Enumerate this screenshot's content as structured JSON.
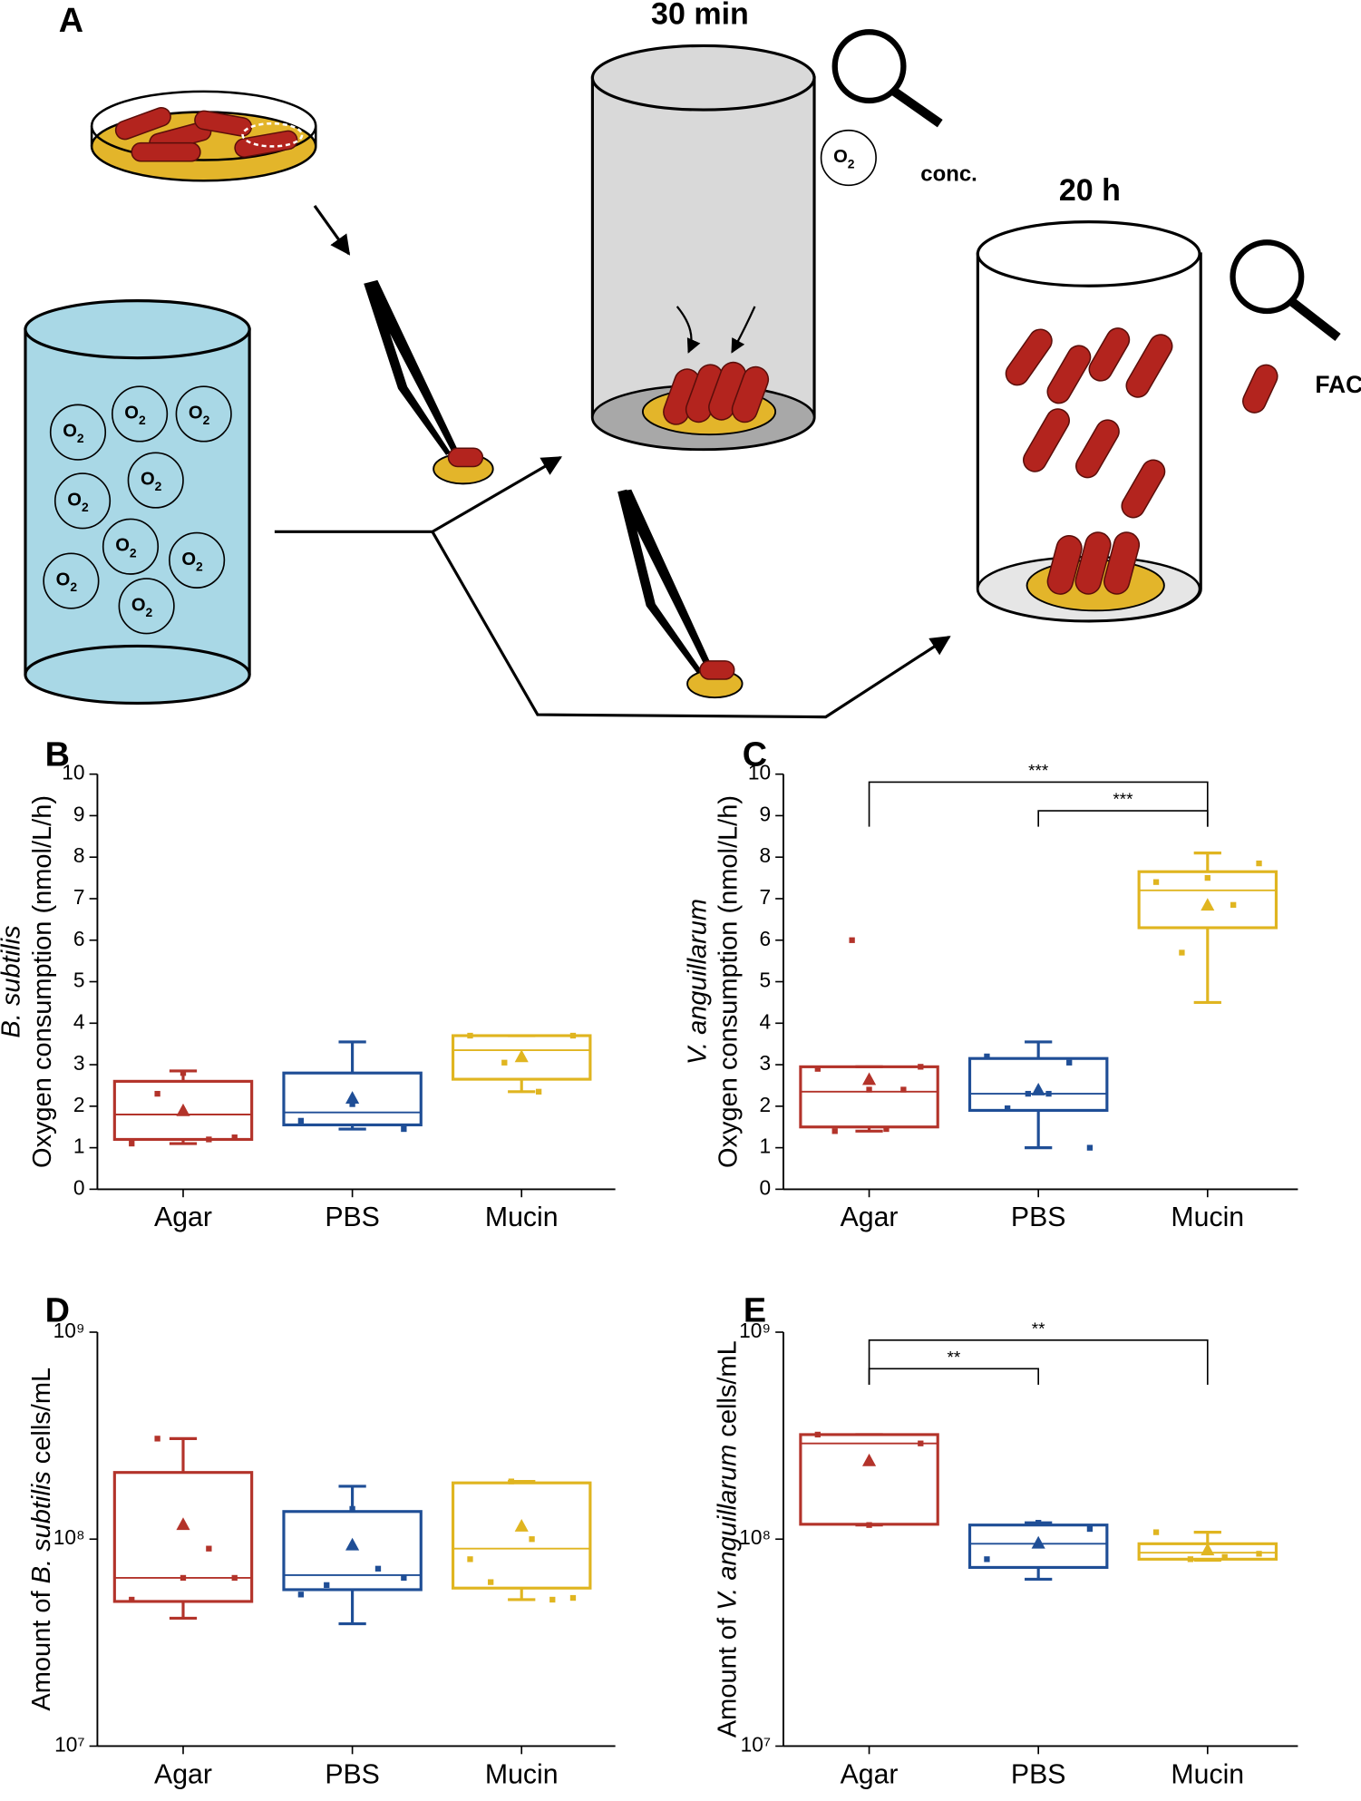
{
  "panel_a": {
    "letter": "A",
    "time_1": "30 min",
    "time_2": "20 h",
    "conc": "conc.",
    "facs": "FACS",
    "o2_symbol": "O",
    "o2_subscript": "2"
  },
  "chart_data": [
    {
      "type": "box",
      "panel": "B",
      "ylabel": [
        "B. subtilis",
        "Oxygen consumption (nmol/L/h)"
      ],
      "categories": [
        "Agar",
        "PBS",
        "Mucin"
      ],
      "ylim": [
        0,
        10
      ],
      "yticks": [
        0,
        1,
        2,
        3,
        4,
        5,
        6,
        7,
        8,
        9,
        10
      ],
      "boxes": [
        {
          "color": "#b3332a",
          "min": 1.1,
          "q1": 1.2,
          "median": 1.8,
          "q3": 2.6,
          "max": 2.85,
          "mean": 1.9,
          "points": [
            1.1,
            2.3,
            2.8,
            1.2,
            1.25
          ]
        },
        {
          "color": "#1f4e96",
          "min": 1.45,
          "q1": 1.55,
          "median": 1.85,
          "q3": 2.8,
          "max": 3.55,
          "mean": 2.2,
          "points": [
            1.65,
            2.05,
            1.45
          ]
        },
        {
          "color": "#e0b520",
          "min": 2.35,
          "q1": 2.65,
          "median": 3.35,
          "q3": 3.7,
          "max": 3.7,
          "mean": 3.2,
          "points": [
            3.7,
            3.05,
            2.35,
            3.7
          ]
        }
      ],
      "significance": []
    },
    {
      "type": "box",
      "panel": "C",
      "ylabel": [
        "V. anguillarum",
        "Oxygen consumption (nmol/L/h)"
      ],
      "categories": [
        "Agar",
        "PBS",
        "Mucin"
      ],
      "ylim": [
        0,
        10
      ],
      "yticks": [
        0,
        1,
        2,
        3,
        4,
        5,
        6,
        7,
        8,
        9,
        10
      ],
      "boxes": [
        {
          "color": "#b3332a",
          "min": 1.4,
          "q1": 1.5,
          "median": 2.35,
          "q3": 2.95,
          "max": 2.95,
          "mean": 2.65,
          "points": [
            2.9,
            1.4,
            6.0,
            2.4,
            1.45,
            2.4,
            2.95
          ]
        },
        {
          "color": "#1f4e96",
          "min": 1.0,
          "q1": 1.9,
          "median": 2.3,
          "q3": 3.15,
          "max": 3.55,
          "mean": 2.4,
          "points": [
            3.2,
            1.95,
            2.3,
            2.3,
            3.05,
            1.0
          ]
        },
        {
          "color": "#e0b520",
          "min": 4.5,
          "q1": 6.3,
          "median": 7.2,
          "q3": 7.65,
          "max": 8.1,
          "mean": 6.85,
          "points": [
            7.4,
            5.7,
            7.5,
            6.85,
            7.85
          ]
        }
      ],
      "significance": [
        {
          "between": [
            0,
            2
          ],
          "label": "***"
        },
        {
          "between": [
            1,
            2
          ],
          "label": "***"
        }
      ]
    },
    {
      "type": "box",
      "panel": "D",
      "ylabel": [
        "Amount of ",
        "B. subtilis",
        " cells/mL"
      ],
      "log_scale": true,
      "categories": [
        "Agar",
        "PBS",
        "Mucin"
      ],
      "ylim": [
        10000000,
        1000000000
      ],
      "yticks": [
        {
          "value": 10000000,
          "label": "10⁷"
        },
        {
          "value": 100000000,
          "label": "10⁸"
        },
        {
          "value": 1000000000,
          "label": "10⁹"
        }
      ],
      "boxes": [
        {
          "color": "#b3332a",
          "min": 41500000,
          "q1": 50000000,
          "median": 65000000,
          "q3": 210000000,
          "max": 306000000,
          "mean": 118000000,
          "points": [
            51000000,
            306000000,
            65000000,
            90000000,
            65000000
          ]
        },
        {
          "color": "#1f4e96",
          "min": 39000000,
          "q1": 57000000,
          "median": 67000000,
          "q3": 136000000,
          "max": 180000000,
          "mean": 94000000,
          "points": [
            54000000,
            60000000,
            140000000,
            72000000,
            65000000
          ]
        },
        {
          "color": "#e0b520",
          "min": 51000000,
          "q1": 58000000,
          "median": 90000000,
          "q3": 187000000,
          "max": 190000000,
          "mean": 116000000,
          "points": [
            80000000,
            62000000,
            190000000,
            100000000,
            51000000,
            52000000
          ]
        }
      ],
      "significance": []
    },
    {
      "type": "box",
      "panel": "E",
      "ylabel": [
        "Amount of ",
        "V. anguillarum",
        " cells/mL"
      ],
      "log_scale": true,
      "categories": [
        "Agar",
        "PBS",
        "Mucin"
      ],
      "ylim": [
        10000000,
        1000000000
      ],
      "yticks": [
        {
          "value": 10000000,
          "label": "10⁷"
        },
        {
          "value": 100000000,
          "label": "10⁸"
        },
        {
          "value": 1000000000,
          "label": "10⁹"
        }
      ],
      "boxes": [
        {
          "color": "#b3332a",
          "min": 117000000,
          "q1": 118000000,
          "median": 290000000,
          "q3": 320000000,
          "max": 320000000,
          "mean": 240000000,
          "points": [
            320000000,
            117000000,
            290000000
          ]
        },
        {
          "color": "#1f4e96",
          "min": 64000000,
          "q1": 73000000,
          "median": 95000000,
          "q3": 117000000,
          "max": 120000000,
          "mean": 96000000,
          "points": [
            80000000,
            120000000,
            112000000
          ]
        },
        {
          "color": "#e0b520",
          "min": 79000000,
          "q1": 80000000,
          "median": 86000000,
          "q3": 95000000,
          "max": 108000000,
          "mean": 89000000,
          "points": [
            108000000,
            80000000,
            82000000,
            85000000
          ]
        }
      ],
      "significance": [
        {
          "between": [
            0,
            2
          ],
          "label": "**"
        },
        {
          "between": [
            0,
            1
          ],
          "label": "**"
        }
      ]
    }
  ]
}
